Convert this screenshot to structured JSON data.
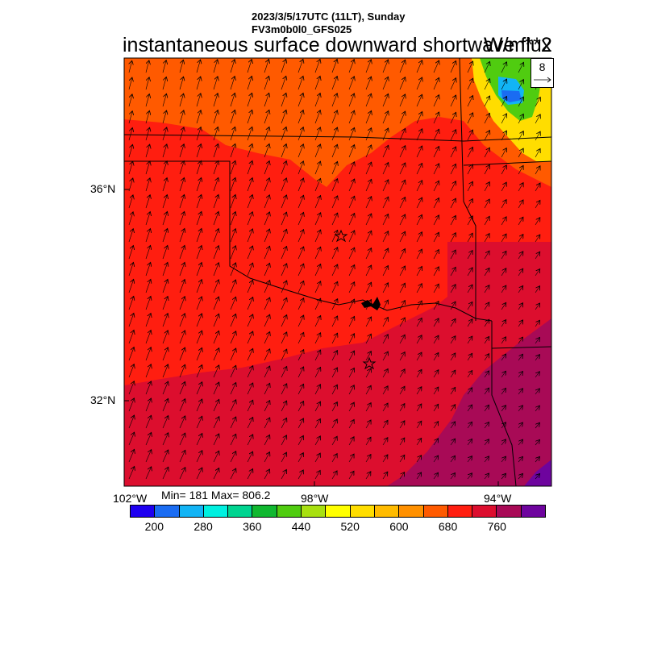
{
  "header": {
    "datetime": "2023/3/5/17UTC (11LT), Sunday",
    "model": "FV3m0b0l0_GFS025",
    "title": "instantaneous surface downward shortwave flux",
    "units": "W/m**2"
  },
  "stats": {
    "label": "Min= 181 Max= 806.2"
  },
  "axes": {
    "lat_labels": [
      "36°N",
      "32°N"
    ],
    "lon_labels": [
      "102°W",
      "98°W",
      "94°W"
    ]
  },
  "legend": {
    "labels": [
      "200",
      "280",
      "360",
      "440",
      "520",
      "600",
      "680",
      "760"
    ],
    "colors": [
      "#1e00f0",
      "#1a6cf2",
      "#12b4f5",
      "#00f0e0",
      "#00d490",
      "#10b830",
      "#50cc10",
      "#a8e010",
      "#ffff00",
      "#ffdd00",
      "#ffbb00",
      "#ff9000",
      "#ff5a00",
      "#ff1e10",
      "#dc0e2e",
      "#a80a56",
      "#6e049e"
    ]
  },
  "reference_vector": {
    "value": "8"
  },
  "colors": {
    "outer": "#ff5a00",
    "main": "#ff1e10",
    "south": "#dc0e2e",
    "southeast": "#a80a56",
    "corner": "#6e049e"
  }
}
